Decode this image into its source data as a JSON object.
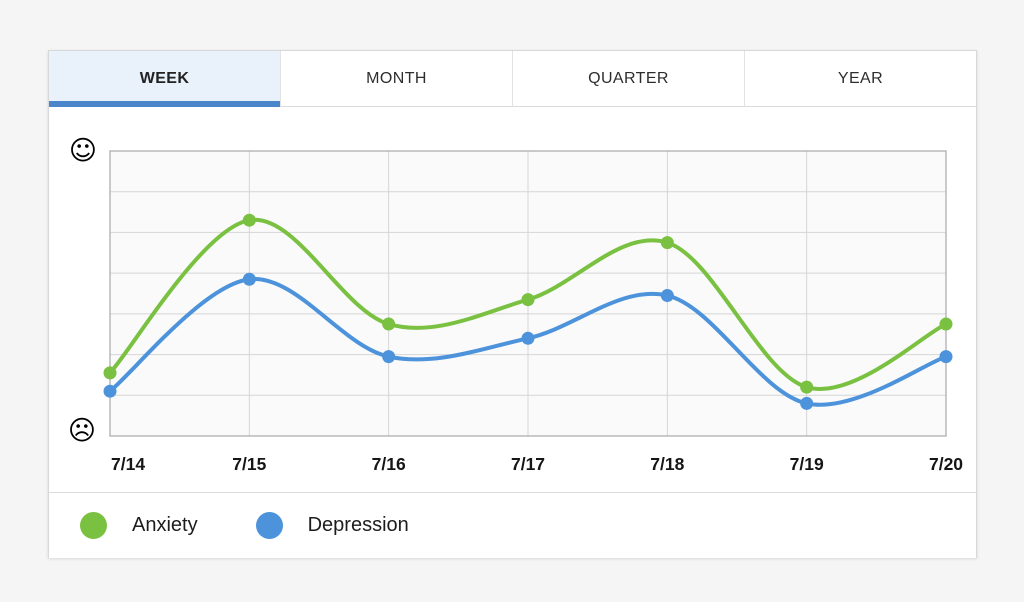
{
  "tabs": [
    {
      "label": "WEEK",
      "active": true
    },
    {
      "label": "MONTH",
      "active": false
    },
    {
      "label": "QUARTER",
      "active": false
    },
    {
      "label": "YEAR",
      "active": false
    }
  ],
  "y_axis": {
    "top_icon": "happy-face",
    "bottom_icon": "sad-face",
    "top_glyph": "☺",
    "bottom_glyph": "☹"
  },
  "chart_data": {
    "type": "line",
    "title": "",
    "x": [
      "7/14",
      "7/15",
      "7/16",
      "7/17",
      "7/18",
      "7/19",
      "7/20"
    ],
    "series": [
      {
        "name": "Anxiety",
        "color": "#7AC142",
        "values": [
          1.55,
          5.3,
          2.75,
          3.35,
          4.75,
          1.2,
          2.75
        ]
      },
      {
        "name": "Depression",
        "color": "#4D93DB",
        "values": [
          1.1,
          3.85,
          1.95,
          2.4,
          3.45,
          0.8,
          1.95
        ]
      }
    ],
    "ylim": [
      0,
      7
    ],
    "grid": true,
    "grid_rows": 7,
    "y_axis_labels": {
      "top": "happy-face",
      "bottom": "sad-face"
    },
    "legend_position": "bottom",
    "line_smoothing": "bezier"
  },
  "legend": {
    "items": [
      {
        "label": "Anxiety",
        "color": "#7AC142"
      },
      {
        "label": "Depression",
        "color": "#4D93DB"
      }
    ]
  },
  "colors": {
    "accent_blue": "#4a86c9",
    "active_tab_bg": "#e9f1fb",
    "anxiety_green": "#7AC142",
    "depression_blue": "#4D93DB",
    "plot_background": "#fafafa",
    "grid_line": "#d5d5d5",
    "plot_border": "#a8a8a8"
  }
}
